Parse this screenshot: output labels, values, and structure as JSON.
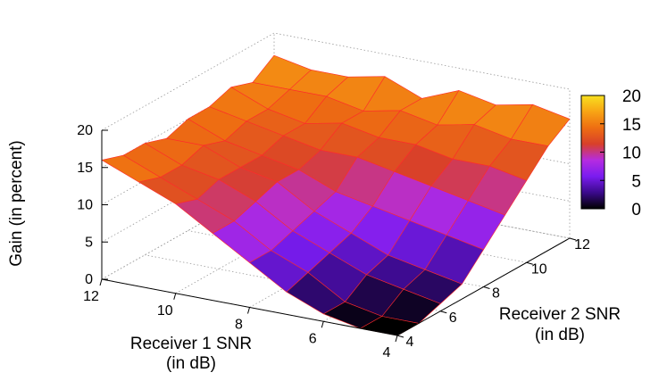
{
  "chart_data": {
    "type": "surface3d",
    "title": "",
    "xlabel_line1": "Receiver 1 SNR",
    "xlabel_line2": "(in dB)",
    "ylabel_line1": "Receiver 2 SNR",
    "ylabel_line2": "(in dB)",
    "zlabel": "Gain (in percent)",
    "xlim": [
      4,
      12
    ],
    "ylim": [
      4,
      12
    ],
    "zlim": [
      0,
      20
    ],
    "x_ticks": [
      "4",
      "6",
      "8",
      "10",
      "12"
    ],
    "y_ticks": [
      "4",
      "6",
      "8",
      "10",
      "12"
    ],
    "z_ticks": [
      "0",
      "5",
      "10",
      "15",
      "20"
    ],
    "colorbar_ticks": [
      "0",
      "5",
      "10",
      "15",
      "20"
    ],
    "colorbar_range": [
      0,
      20
    ],
    "palette": [
      "#000000",
      "#3b0a8c",
      "#7a1cf0",
      "#b52ce0",
      "#d8402a",
      "#ee6e12",
      "#f8a414",
      "#f8e020"
    ],
    "grid_x": [
      4,
      5,
      6,
      7,
      8,
      9,
      10,
      11,
      12
    ],
    "grid_y": [
      4,
      5,
      6,
      7,
      8,
      9,
      10,
      11,
      12
    ],
    "z": [
      [
        0,
        0,
        1,
        2,
        5,
        8,
        11,
        14,
        16
      ],
      [
        0,
        0,
        2,
        3,
        6,
        9,
        12,
        14,
        17
      ],
      [
        1,
        1,
        3,
        4,
        7,
        10,
        12,
        15,
        16
      ],
      [
        3,
        4,
        5,
        6,
        8,
        11,
        13,
        14,
        17
      ],
      [
        6,
        6,
        7,
        8,
        9,
        12,
        13,
        15,
        15
      ],
      [
        9,
        9,
        10,
        11,
        11,
        12,
        14,
        14,
        17
      ],
      [
        12,
        11,
        12,
        12,
        12,
        13,
        13,
        15,
        16
      ],
      [
        14,
        13,
        13,
        14,
        13,
        14,
        14,
        15,
        16
      ],
      [
        16,
        15,
        15,
        14,
        15,
        15,
        16,
        15,
        17
      ]
    ]
  }
}
